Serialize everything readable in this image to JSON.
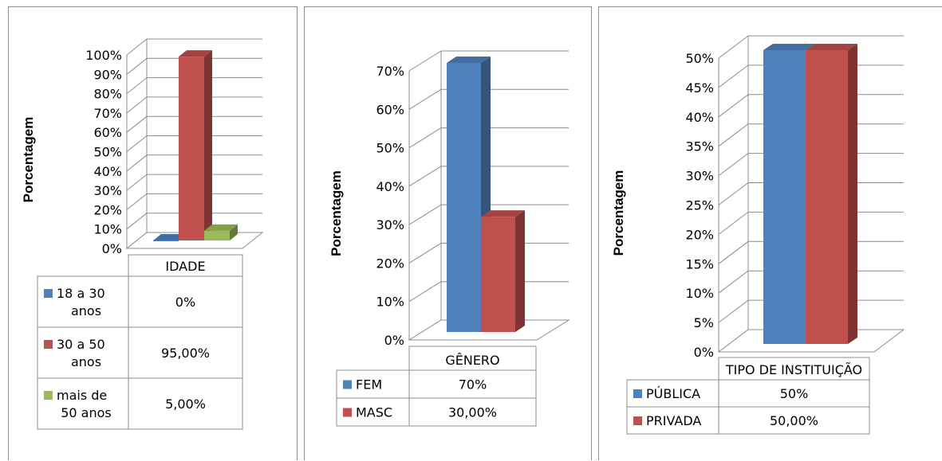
{
  "chart_data": [
    {
      "type": "bar",
      "ylabel": "Porcentagem",
      "categories": [
        "IDADE"
      ],
      "yticks": [
        "0%",
        "10%",
        "20%",
        "30%",
        "40%",
        "50%",
        "60%",
        "70%",
        "80%",
        "90%",
        "100%"
      ],
      "ylim": [
        0,
        100
      ],
      "series": [
        {
          "name_lines": [
            "18 a 30",
            "anos"
          ],
          "value": 0,
          "value_label": "0%",
          "color": "#4F81BD"
        },
        {
          "name_lines": [
            "30 a 50",
            "anos"
          ],
          "value": 95,
          "value_label": "95,00%",
          "color": "#C0504D"
        },
        {
          "name_lines": [
            "mais de",
            "50 anos"
          ],
          "value": 5,
          "value_label": "5,00%",
          "color": "#9BBB59"
        }
      ]
    },
    {
      "type": "bar",
      "ylabel": "Porcentagem",
      "categories": [
        "GÊNERO"
      ],
      "yticks": [
        "0%",
        "10%",
        "20%",
        "30%",
        "40%",
        "50%",
        "60%",
        "70%"
      ],
      "ylim": [
        0,
        70
      ],
      "series": [
        {
          "name_lines": [
            "FEM"
          ],
          "value": 70,
          "value_label": "70%",
          "color": "#4F81BD"
        },
        {
          "name_lines": [
            "MASC"
          ],
          "value": 30,
          "value_label": "30,00%",
          "color": "#C0504D"
        }
      ]
    },
    {
      "type": "bar",
      "ylabel": "Porcentagem",
      "categories": [
        "TIPO DE INSTITUIÇÃO"
      ],
      "yticks": [
        "0%",
        "5%",
        "10%",
        "15%",
        "20%",
        "25%",
        "30%",
        "35%",
        "40%",
        "45%",
        "50%"
      ],
      "ylim": [
        0,
        50
      ],
      "series": [
        {
          "name_lines": [
            "PÚBLICA"
          ],
          "value": 50,
          "value_label": "50%",
          "color": "#4F81BD"
        },
        {
          "name_lines": [
            "PRIVADA"
          ],
          "value": 50,
          "value_label": "50,00%",
          "color": "#C0504D"
        }
      ]
    }
  ]
}
